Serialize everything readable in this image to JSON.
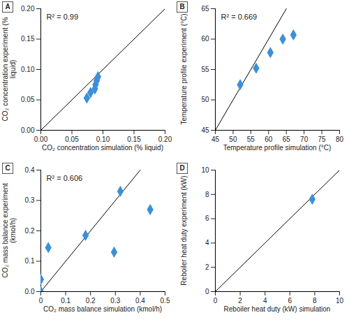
{
  "chart_data": [
    {
      "type": "scatter",
      "title": "A",
      "annotation": "R² = 0.99",
      "x_label": "CO₂ concentration simulation (% liquid)",
      "y_label": "CO₂ concentration experiment (% liquid)",
      "x": [
        0.074,
        0.08,
        0.087,
        0.088,
        0.09,
        0.092
      ],
      "values": [
        0.053,
        0.062,
        0.068,
        0.075,
        0.082,
        0.088
      ],
      "color": "#3d8fd8",
      "marker": "diamond",
      "xlim": [
        0,
        0.2
      ],
      "ylim": [
        0,
        0.2
      ],
      "xticks": [
        {
          "value": 0,
          "label": "0.00"
        },
        0.05,
        {
          "value": 0.1,
          "label": "0.10"
        },
        0.15,
        {
          "value": 0.2,
          "label": "0.20"
        }
      ],
      "yticks": [
        {
          "value": 0,
          "label": "0.00"
        },
        0.05,
        {
          "value": 0.1,
          "label": "0.10"
        },
        0.15,
        {
          "value": 0.2,
          "label": "0.20"
        }
      ]
    },
    {
      "type": "scatter",
      "title": "B",
      "annotation": "R² = 0.669",
      "x_label": "Temperature profile simulation (°C)",
      "y_label": "Temperature profile experiment (°C)",
      "x": [
        52,
        56.5,
        60.5,
        64,
        67
      ],
      "values": [
        52.5,
        55.2,
        57.8,
        60,
        60.7
      ],
      "color": "#3d8fd8",
      "marker": "diamond",
      "xlim": [
        45,
        80
      ],
      "ylim": [
        45,
        65
      ],
      "xticks": [
        45,
        50,
        55,
        60,
        65,
        70,
        75,
        80
      ],
      "yticks": [
        45,
        50,
        55,
        60,
        65
      ]
    },
    {
      "type": "scatter",
      "title": "C",
      "annotation": "R² = 0.606",
      "x_label": "CO₂ mass balance simulation (kmol/h)",
      "y_label": "CO₂ mass balance experiment (kmol/h)",
      "x": [
        0,
        0,
        0.03,
        0.18,
        0.295,
        0.32,
        0.44
      ],
      "values": [
        0.0,
        0.04,
        0.145,
        0.185,
        0.13,
        0.33,
        0.27
      ],
      "color": "#3d8fd8",
      "marker": "diamond",
      "xlim": [
        0,
        0.5
      ],
      "ylim": [
        0,
        0.4
      ],
      "xticks": [
        0,
        0.1,
        0.2,
        0.3,
        0.4,
        0.5
      ],
      "yticks": [
        {
          "value": 0,
          "label": "0.0"
        },
        0.1,
        0.2,
        0.3,
        0.4
      ]
    },
    {
      "type": "scatter",
      "title": "D",
      "x_label": "Reboiler heat duty (kW) simulation",
      "y_label": "Reboiler heat duty experiment (kW)",
      "x": [
        7.8
      ],
      "values": [
        7.6
      ],
      "color": "#3d8fd8",
      "marker": "diamond",
      "xlim": [
        0,
        10
      ],
      "ylim": [
        0,
        10
      ],
      "xticks": [
        0,
        2,
        4,
        6,
        8,
        10
      ],
      "yticks": [
        0,
        2,
        4,
        6,
        8,
        10
      ]
    }
  ]
}
